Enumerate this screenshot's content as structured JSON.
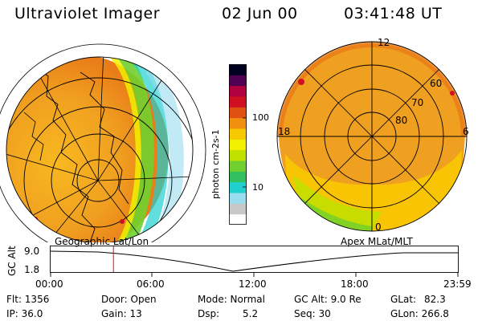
{
  "header": {
    "title": "Ultraviolet Imager",
    "date": "02 Jun 00",
    "time": "03:41:48 UT"
  },
  "colorbar": {
    "unit_label": "photon cm-2s-1",
    "tick_high": "100",
    "tick_low": "10",
    "colors": [
      "#ffffff",
      "#c8c8c8",
      "#9adcf0",
      "#20d0d0",
      "#30c060",
      "#70d030",
      "#c0e000",
      "#f0f000",
      "#f8c800",
      "#f09010",
      "#e05010",
      "#d01020",
      "#b00040",
      "#500050",
      "#000020"
    ]
  },
  "left_panel": {
    "caption": "Geographic Lat/Lon"
  },
  "right_panel": {
    "caption": "Apex MLat/MLT",
    "mlt_labels": {
      "top": "12",
      "left": "18",
      "right": "6",
      "bottom": "0"
    },
    "lat_labels": [
      "60",
      "70",
      "80"
    ]
  },
  "altitude_plot": {
    "ylabel": "GC Alt",
    "y_ticks": [
      "9.0",
      "1.8"
    ],
    "x_ticks": [
      "00:00",
      "06:00",
      "12:00",
      "18:00",
      "23:59"
    ],
    "marker_time_hours": 3.7
  },
  "status": {
    "flt": "Flt: 1356",
    "ip": "IP: 36.0",
    "door": "Door: Open",
    "gain": "Gain: 13",
    "mode": "Mode: Normal",
    "dsp": "Dsp:",
    "dsp_value": "5.2",
    "gc_alt": "GC Alt: 9.0 Re",
    "seq": "Seq: 30",
    "glat": "GLat:",
    "glat_value": "82.3",
    "glon": "GLon: 266.8"
  }
}
